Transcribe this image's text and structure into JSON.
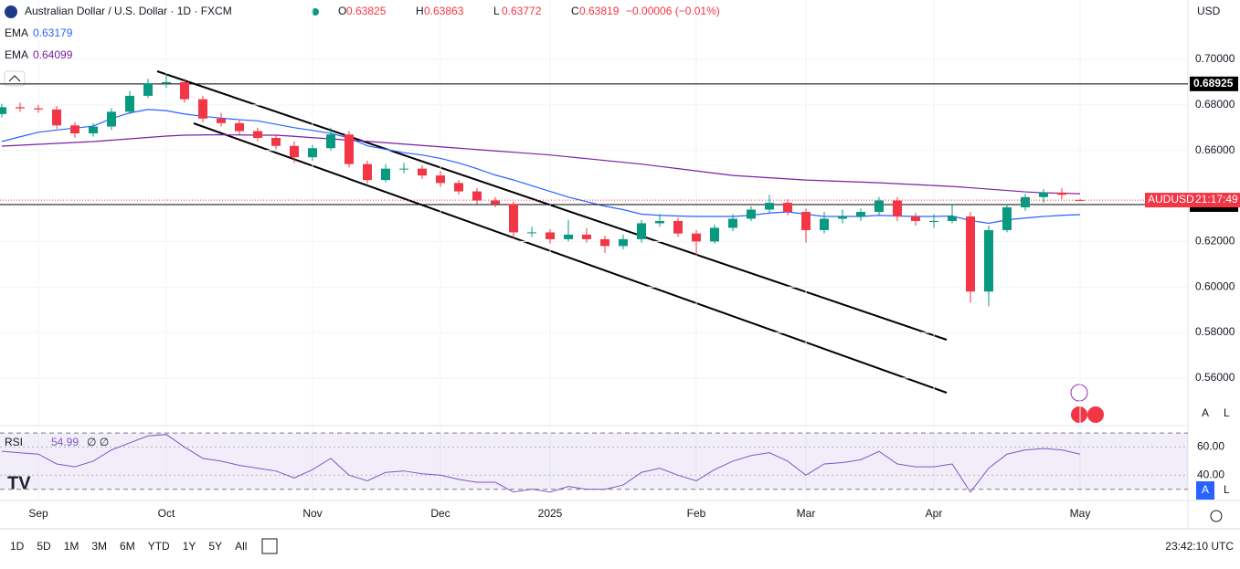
{
  "chart_data": {
    "type": "candlestick",
    "title": "Australian Dollar / U.S. Dollar · 1D · FXCM",
    "header_labels": [
      "O",
      "H",
      "L",
      "C"
    ],
    "change_label": "−0.00006 (−0.01%)",
    "currency": "USD",
    "symbol_tag": "AUDUSD",
    "countdown": "21:17:49",
    "up_color": "#089981",
    "down_color": "#f23645",
    "categories": [
      null,
      null,
      "Sep",
      null,
      null,
      null,
      null,
      null,
      null,
      "Oct",
      null,
      null,
      null,
      null,
      null,
      null,
      null,
      "Nov",
      null,
      null,
      null,
      null,
      null,
      null,
      "Dec",
      null,
      null,
      null,
      null,
      null,
      "2025",
      null,
      null,
      null,
      null,
      null,
      null,
      null,
      "Feb",
      null,
      null,
      null,
      null,
      null,
      "Mar",
      null,
      null,
      null,
      null,
      null,
      null,
      "Apr",
      null,
      null,
      null,
      null,
      null,
      null,
      null,
      "May"
    ],
    "ohlc": [
      [
        0.676,
        0.6805,
        0.6745,
        0.679
      ],
      [
        0.679,
        0.681,
        0.677,
        0.6785
      ],
      [
        0.6785,
        0.68,
        0.6765,
        0.678
      ],
      [
        0.678,
        0.6795,
        0.6695,
        0.671
      ],
      [
        0.671,
        0.6725,
        0.6655,
        0.6675
      ],
      [
        0.6675,
        0.672,
        0.666,
        0.6705
      ],
      [
        0.6705,
        0.6785,
        0.669,
        0.677
      ],
      [
        0.677,
        0.686,
        0.676,
        0.684
      ],
      [
        0.684,
        0.6915,
        0.683,
        0.6895
      ],
      [
        0.6895,
        0.6935,
        0.6875,
        0.69
      ],
      [
        0.69,
        0.6915,
        0.681,
        0.6825
      ],
      [
        0.6825,
        0.684,
        0.6725,
        0.674
      ],
      [
        0.674,
        0.6765,
        0.6705,
        0.672
      ],
      [
        0.672,
        0.6735,
        0.667,
        0.6685
      ],
      [
        0.6685,
        0.67,
        0.664,
        0.6655
      ],
      [
        0.6655,
        0.667,
        0.6605,
        0.662
      ],
      [
        0.662,
        0.664,
        0.6545,
        0.657
      ],
      [
        0.657,
        0.6625,
        0.6555,
        0.661
      ],
      [
        0.661,
        0.67,
        0.66,
        0.667
      ],
      [
        0.667,
        0.6685,
        0.6525,
        0.654
      ],
      [
        0.654,
        0.6555,
        0.6455,
        0.647
      ],
      [
        0.647,
        0.654,
        0.646,
        0.652
      ],
      [
        0.652,
        0.6545,
        0.65,
        0.652
      ],
      [
        0.652,
        0.6535,
        0.6475,
        0.649
      ],
      [
        0.649,
        0.651,
        0.644,
        0.6457
      ],
      [
        0.6457,
        0.647,
        0.6405,
        0.642
      ],
      [
        0.642,
        0.6435,
        0.6365,
        0.638
      ],
      [
        0.638,
        0.6395,
        0.635,
        0.6365
      ],
      [
        0.6365,
        0.6375,
        0.6215,
        0.624
      ],
      [
        0.624,
        0.6265,
        0.622,
        0.624
      ],
      [
        0.624,
        0.6255,
        0.619,
        0.621
      ],
      [
        0.621,
        0.6295,
        0.62,
        0.623
      ],
      [
        0.623,
        0.626,
        0.6195,
        0.621
      ],
      [
        0.621,
        0.6225,
        0.615,
        0.618
      ],
      [
        0.618,
        0.623,
        0.6165,
        0.621
      ],
      [
        0.621,
        0.6295,
        0.6195,
        0.628
      ],
      [
        0.628,
        0.632,
        0.6265,
        0.629
      ],
      [
        0.629,
        0.6305,
        0.622,
        0.6235
      ],
      [
        0.6235,
        0.625,
        0.614,
        0.62
      ],
      [
        0.62,
        0.6275,
        0.619,
        0.626
      ],
      [
        0.626,
        0.632,
        0.6245,
        0.63
      ],
      [
        0.63,
        0.6355,
        0.629,
        0.634
      ],
      [
        0.634,
        0.6405,
        0.6325,
        0.637
      ],
      [
        0.637,
        0.6385,
        0.6315,
        0.633
      ],
      [
        0.633,
        0.6345,
        0.6195,
        0.625
      ],
      [
        0.625,
        0.633,
        0.6235,
        0.63
      ],
      [
        0.63,
        0.634,
        0.628,
        0.631
      ],
      [
        0.631,
        0.6345,
        0.629,
        0.633
      ],
      [
        0.633,
        0.6395,
        0.6315,
        0.638
      ],
      [
        0.638,
        0.6395,
        0.629,
        0.631
      ],
      [
        0.631,
        0.6325,
        0.627,
        0.629
      ],
      [
        0.629,
        0.632,
        0.626,
        0.629
      ],
      [
        0.629,
        0.6365,
        0.628,
        0.631
      ],
      [
        0.631,
        0.633,
        0.593,
        0.598
      ],
      [
        0.598,
        0.627,
        0.5915,
        0.625
      ],
      [
        0.625,
        0.6365,
        0.624,
        0.635
      ],
      [
        0.635,
        0.641,
        0.6335,
        0.6395
      ],
      [
        0.6395,
        0.643,
        0.637,
        0.6415
      ],
      [
        0.6415,
        0.6435,
        0.6385,
        0.6405
      ],
      [
        0.63825,
        0.63863,
        0.63772,
        0.63819
      ]
    ],
    "series": [
      {
        "name": "EMA",
        "color": "#2962ff",
        "values": [
          0.6639,
          0.666,
          0.668,
          0.669,
          0.6698,
          0.6707,
          0.674,
          0.6765,
          0.678,
          0.6775,
          0.676,
          0.675,
          0.6742,
          0.6735,
          0.673,
          0.6715,
          0.67,
          0.6688,
          0.6675,
          0.6655,
          0.662,
          0.6605,
          0.659,
          0.658,
          0.6565,
          0.6545,
          0.652,
          0.6492,
          0.647,
          0.6445,
          0.642,
          0.6395,
          0.6375,
          0.6355,
          0.634,
          0.632,
          0.6315,
          0.6312,
          0.631,
          0.631,
          0.631,
          0.6315,
          0.6325,
          0.633,
          0.632,
          0.631,
          0.631,
          0.631,
          0.6315,
          0.6312,
          0.631,
          0.631,
          0.6312,
          0.6292,
          0.628,
          0.6295,
          0.6303,
          0.631,
          0.6315,
          0.63179
        ]
      },
      {
        "name": "EMA",
        "color": "#7b1fa2",
        "values": [
          0.6619,
          0.6623,
          0.6627,
          0.6631,
          0.6635,
          0.6639,
          0.6645,
          0.6651,
          0.6657,
          0.6663,
          0.6667,
          0.6668,
          0.6669,
          0.6668,
          0.6667,
          0.6667,
          0.6662,
          0.6656,
          0.6651,
          0.6645,
          0.664,
          0.6634,
          0.6628,
          0.6622,
          0.6616,
          0.661,
          0.6604,
          0.6598,
          0.6592,
          0.6586,
          0.658,
          0.6572,
          0.6564,
          0.6556,
          0.6548,
          0.654,
          0.653,
          0.652,
          0.651,
          0.65,
          0.649,
          0.6485,
          0.648,
          0.6475,
          0.647,
          0.6467,
          0.6464,
          0.6461,
          0.6458,
          0.6454,
          0.645,
          0.6446,
          0.6442,
          0.6436,
          0.643,
          0.6424,
          0.6418,
          0.6414,
          0.6412,
          0.64099
        ]
      }
    ],
    "hlines": [
      0.68925,
      0.63623
    ],
    "ylim": [
      0.5395,
      0.7261
    ],
    "yticks": [
      {
        "value": 0.7,
        "label": "0.70000"
      },
      {
        "value": 0.68,
        "label": "0.68000"
      },
      {
        "value": 0.66,
        "label": "0.66000"
      },
      {
        "value": 0.62,
        "label": "0.62000"
      },
      {
        "value": 0.6,
        "label": "0.60000"
      },
      {
        "value": 0.58,
        "label": "0.58000"
      },
      {
        "value": 0.56,
        "label": "0.56000"
      }
    ],
    "rsi": {
      "name": "RSI",
      "suffix": "∅ ∅",
      "color": "#7e57c2",
      "values": [
        57,
        56,
        55,
        48,
        46,
        50,
        58,
        63,
        68,
        69,
        60,
        52,
        50,
        47,
        45,
        43,
        38,
        44,
        52,
        40,
        36,
        42,
        43,
        41,
        40,
        37,
        35,
        35,
        28,
        30,
        28,
        32,
        30,
        30,
        33,
        42,
        45,
        40,
        36,
        44,
        50,
        54,
        56,
        50,
        40,
        48,
        49,
        51,
        57,
        48,
        46,
        46,
        48,
        28,
        45,
        55,
        58,
        59,
        58,
        54.99
      ],
      "ylim": [
        22,
        74
      ],
      "bands": [
        70,
        30
      ],
      "yticks": [
        {
          "value": 60,
          "label": "60.00"
        },
        {
          "value": 40,
          "label": "40.00"
        }
      ]
    },
    "toolbar": [
      "1D",
      "5D",
      "1M",
      "3M",
      "6M",
      "YTD",
      "1Y",
      "5Y",
      "All"
    ],
    "clock": "23:42:10 UTC",
    "scale_buttons": [
      "A",
      "L"
    ]
  }
}
